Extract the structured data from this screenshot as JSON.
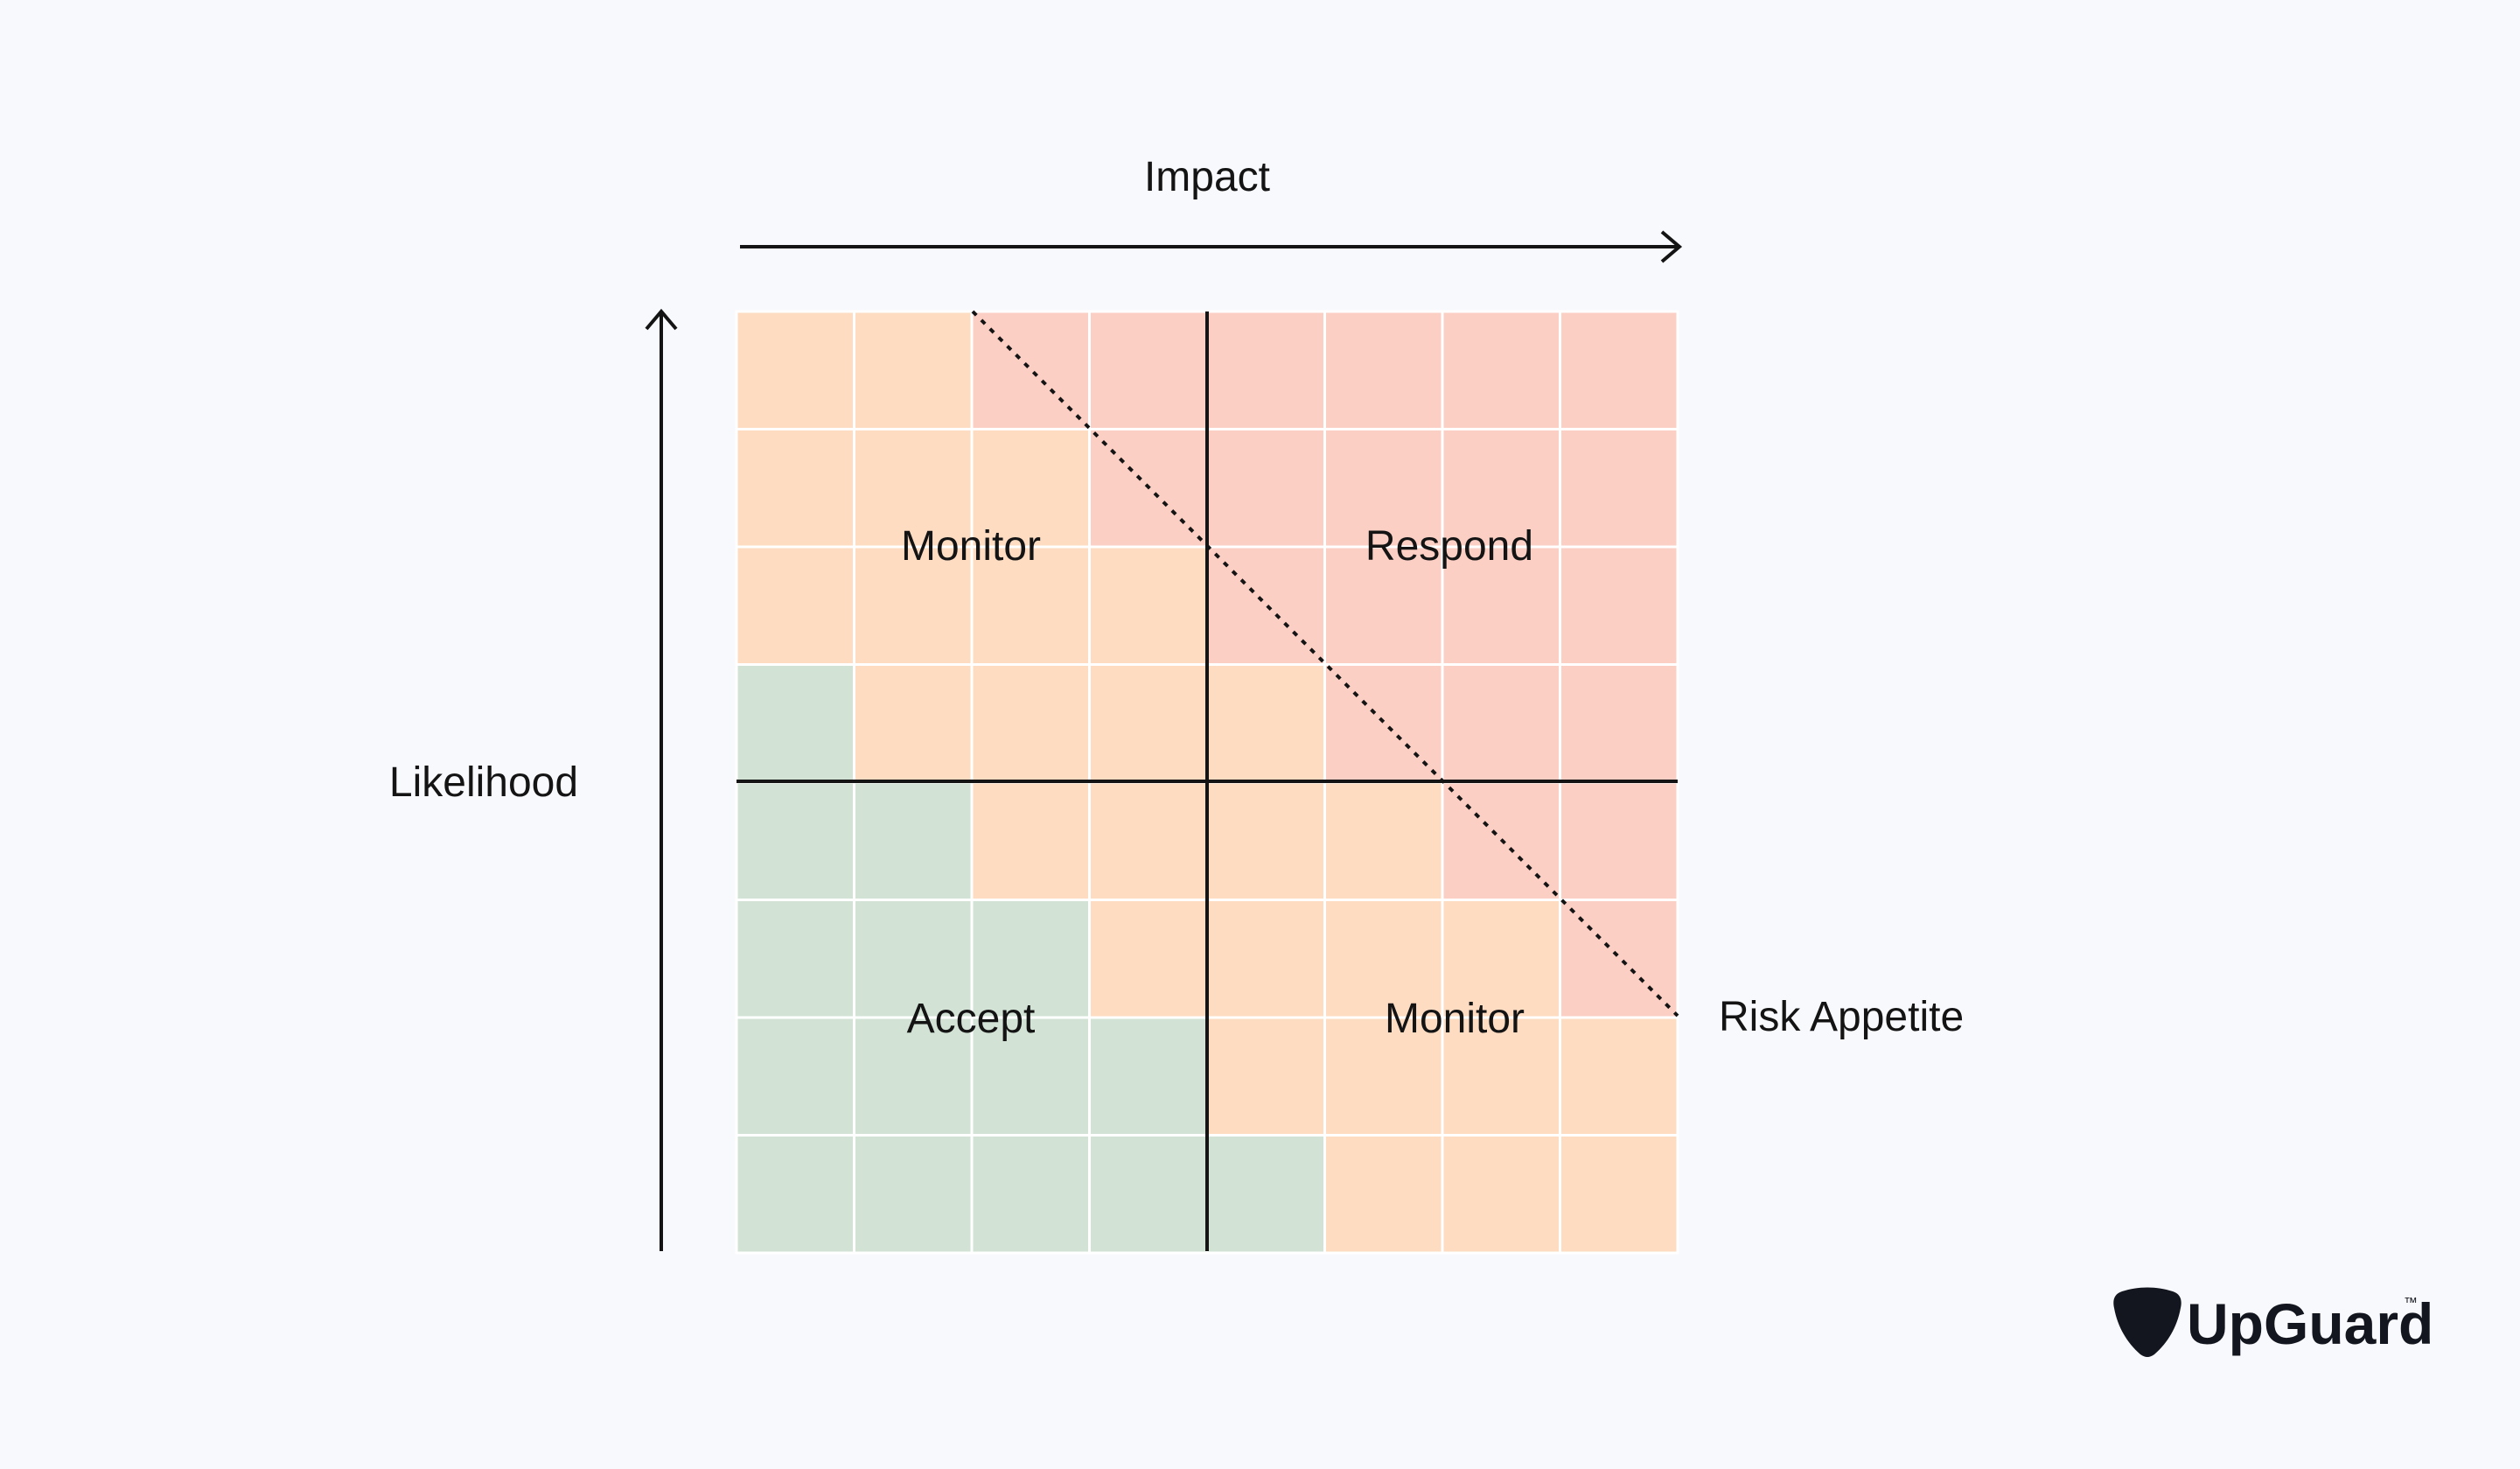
{
  "axes": {
    "x_label": "Impact",
    "y_label": "Likelihood"
  },
  "quadrants": {
    "top_left": "Monitor",
    "top_right": "Respond",
    "bottom_left": "Accept",
    "bottom_right": "Monitor"
  },
  "risk_appetite_label": "Risk Appetite",
  "brand": {
    "name": "UpGuard",
    "trademark": "™"
  },
  "colors": {
    "accept": "#d2e3d5",
    "monitor": "#fddcc2",
    "respond": "#fbcfc4",
    "line": "#141414",
    "logo": "#14161f"
  },
  "grid": {
    "size": 8,
    "zones_top_to_bottom": [
      [
        "monitor",
        "monitor",
        "respond",
        "respond",
        "respond",
        "respond",
        "respond",
        "respond"
      ],
      [
        "monitor",
        "monitor",
        "monitor",
        "respond",
        "respond",
        "respond",
        "respond",
        "respond"
      ],
      [
        "monitor",
        "monitor",
        "monitor",
        "monitor",
        "respond",
        "respond",
        "respond",
        "respond"
      ],
      [
        "accept",
        "monitor",
        "monitor",
        "monitor",
        "monitor",
        "respond",
        "respond",
        "respond"
      ],
      [
        "accept",
        "accept",
        "monitor",
        "monitor",
        "monitor",
        "monitor",
        "respond",
        "respond"
      ],
      [
        "accept",
        "accept",
        "accept",
        "monitor",
        "monitor",
        "monitor",
        "monitor",
        "respond"
      ],
      [
        "accept",
        "accept",
        "accept",
        "accept",
        "monitor",
        "monitor",
        "monitor",
        "monitor"
      ],
      [
        "accept",
        "accept",
        "accept",
        "accept",
        "accept",
        "monitor",
        "monitor",
        "monitor"
      ]
    ]
  }
}
